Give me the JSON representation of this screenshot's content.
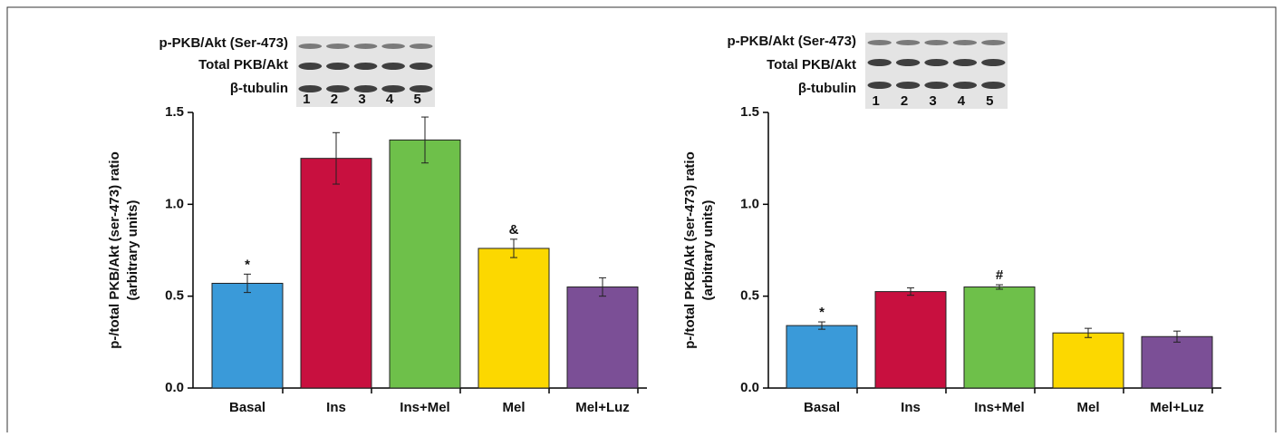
{
  "chart_data": [
    {
      "type": "bar",
      "blot_labels": [
        "p-PKB/Akt (Ser-473)",
        "Total PKB/Akt",
        "β-tubulin"
      ],
      "lanes": [
        "1",
        "2",
        "3",
        "4",
        "5"
      ],
      "ylabel": [
        "p-/total PKB/Akt (ser-473) ratio",
        "(arbitrary units)"
      ],
      "categories": [
        "Basal",
        "Ins",
        "Ins+Mel",
        "Mel",
        "Mel+Luz"
      ],
      "values": [
        0.57,
        1.25,
        1.35,
        0.76,
        0.55
      ],
      "errors": [
        0.05,
        0.14,
        0.125,
        0.05,
        0.05
      ],
      "value_annotations": [
        "*",
        null,
        null,
        "&",
        null
      ],
      "colors": [
        "#3a9ad9",
        "#c8103f",
        "#6ec04a",
        "#fcd800",
        "#7b4f96"
      ],
      "ylim": [
        0,
        1.5
      ],
      "yticks": [
        {
          "value": 0,
          "label": "0.0"
        },
        0.5,
        {
          "value": 1,
          "label": "1.0"
        },
        1.5
      ]
    },
    {
      "type": "bar",
      "blot_labels": [
        "p-PKB/Akt (Ser-473)",
        "Total PKB/Akt",
        "β-tubulin"
      ],
      "lanes": [
        "1",
        "2",
        "3",
        "4",
        "5"
      ],
      "ylabel": [
        "p-/total PKB/Akt (ser-473) ratio",
        "(arbitrary units)"
      ],
      "categories": [
        "Basal",
        "Ins",
        "Ins+Mel",
        "Mel",
        "Mel+Luz"
      ],
      "values": [
        0.34,
        0.525,
        0.55,
        0.3,
        0.28
      ],
      "errors": [
        0.02,
        0.02,
        0.012,
        0.025,
        0.03
      ],
      "value_annotations": [
        "*",
        null,
        "#",
        null,
        null
      ],
      "colors": [
        "#3a9ad9",
        "#c8103f",
        "#6ec04a",
        "#fcd800",
        "#7b4f96"
      ],
      "ylim": [
        0,
        1.5
      ],
      "yticks": [
        {
          "value": 0,
          "label": "0.0"
        },
        0.5,
        {
          "value": 1,
          "label": "1.0"
        },
        1.5
      ]
    }
  ]
}
